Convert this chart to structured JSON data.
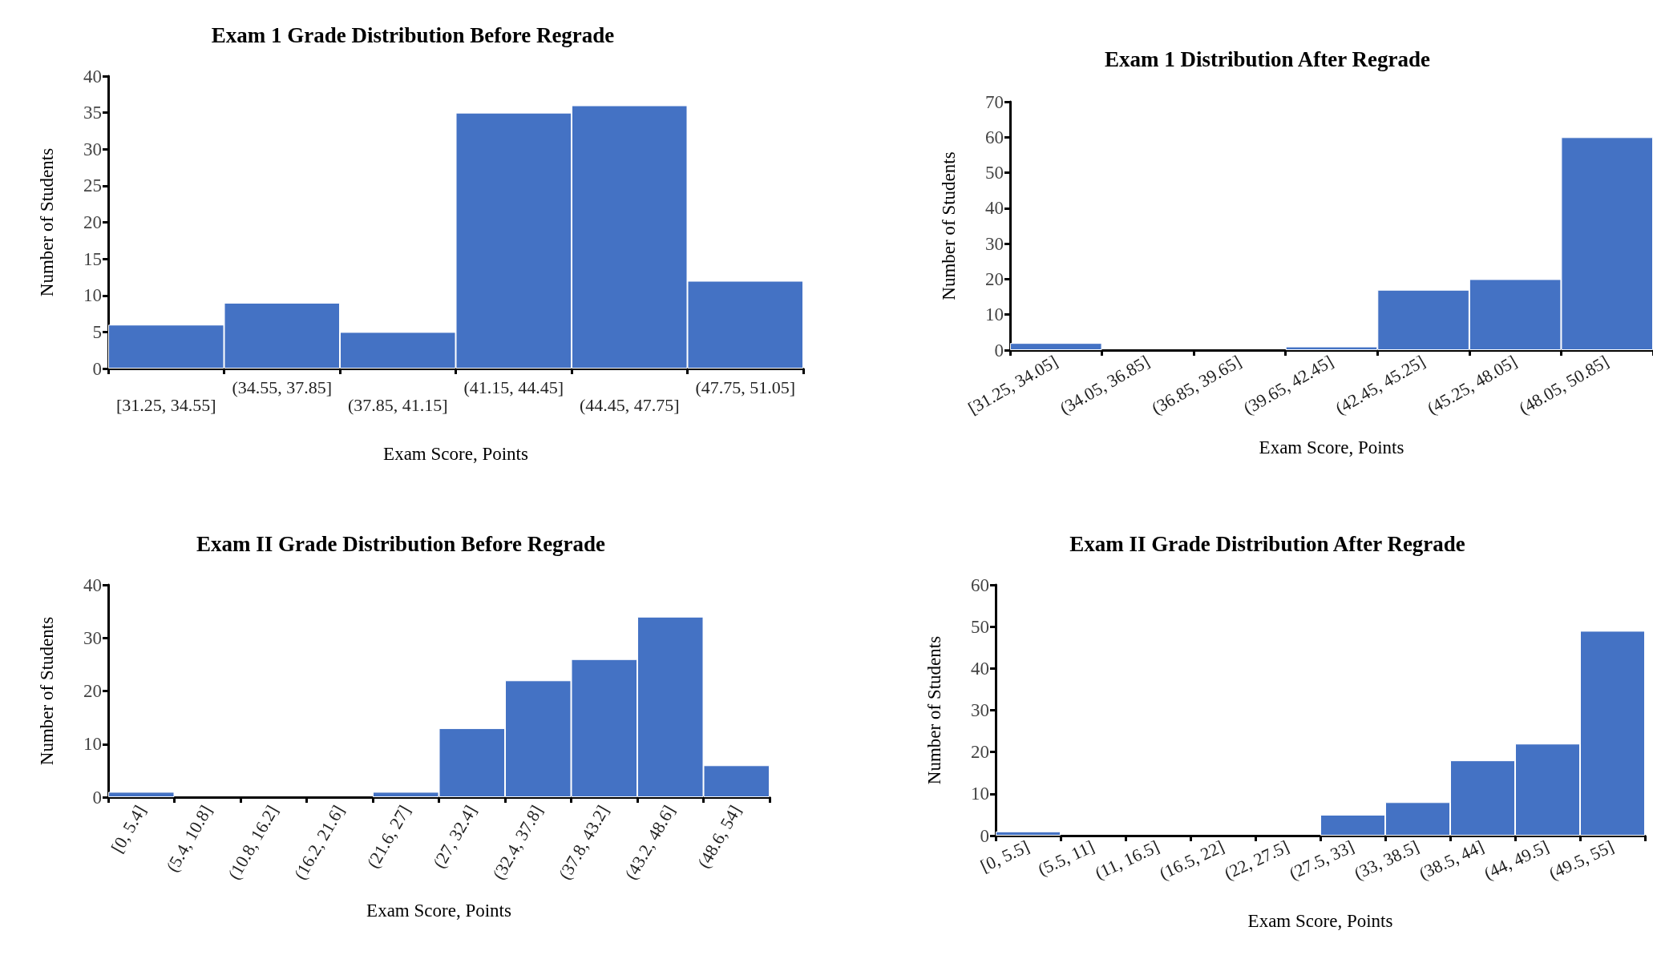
{
  "chart_data": [
    {
      "type": "bar",
      "title": "Exam 1 Grade Distribution Before Regrade",
      "xlabel": "Exam Score, Points",
      "ylabel": "Number of Students",
      "categories": [
        "[31.25, 34.55]",
        "(34.55, 37.85]",
        "(37.85, 41.15]",
        "(41.15, 44.45]",
        "(44.45, 47.75]",
        "(47.75, 51.05]"
      ],
      "values": [
        6,
        9,
        5,
        35,
        36,
        12
      ],
      "color": "#4472c4",
      "ylim": [
        0,
        40
      ],
      "yticks": [
        0,
        5,
        10,
        15,
        20,
        25,
        30,
        35,
        40
      ],
      "grid": false
    },
    {
      "type": "bar",
      "title": "Exam 1 Distribution After Regrade",
      "xlabel": "Exam Score, Points",
      "ylabel": "Number of Students",
      "categories": [
        "[31.25, 34.05]",
        "(34.05, 36.85]",
        "(36.85, 39.65]",
        "(39.65, 42.45]",
        "(42.45, 45.25]",
        "(45.25, 48.05]",
        "(48.05, 50.85]"
      ],
      "values": [
        2,
        0,
        0,
        1,
        17,
        20,
        60
      ],
      "color": "#4472c4",
      "ylim": [
        0,
        70
      ],
      "yticks": [
        0,
        10,
        20,
        30,
        40,
        50,
        60,
        70
      ],
      "grid": false
    },
    {
      "type": "bar",
      "title": "Exam II Grade Distribution Before Regrade",
      "xlabel": "Exam Score, Points",
      "ylabel": "Number of Students",
      "categories": [
        "[0, 5.4]",
        "(5.4, 10.8]",
        "(10.8, 16.2]",
        "(16.2, 21.6]",
        "(21.6, 27]",
        "(27, 32.4]",
        "(32.4, 37.8]",
        "(37.8, 43.2]",
        "(43.2, 48.6]",
        "(48.6, 54]"
      ],
      "values": [
        1,
        0,
        0,
        0,
        1,
        13,
        22,
        26,
        34,
        6
      ],
      "color": "#4472c4",
      "ylim": [
        0,
        40
      ],
      "yticks": [
        0,
        10,
        20,
        30,
        40
      ],
      "grid": false
    },
    {
      "type": "bar",
      "title": "Exam II Grade Distribution After Regrade",
      "xlabel": "Exam Score, Points",
      "ylabel": "Number of Students",
      "categories": [
        "[0, 5.5]",
        "(5.5, 11]",
        "(11, 16.5]",
        "(16.5, 22]",
        "(22, 27.5]",
        "(27.5, 33]",
        "(33, 38.5]",
        "(38.5, 44]",
        "(44, 49.5]",
        "(49.5, 55]"
      ],
      "values": [
        1,
        0,
        0,
        0,
        0,
        5,
        8,
        18,
        22,
        49
      ],
      "color": "#4472c4",
      "ylim": [
        0,
        60
      ],
      "yticks": [
        0,
        10,
        20,
        30,
        40,
        50,
        60
      ],
      "grid": false
    }
  ]
}
